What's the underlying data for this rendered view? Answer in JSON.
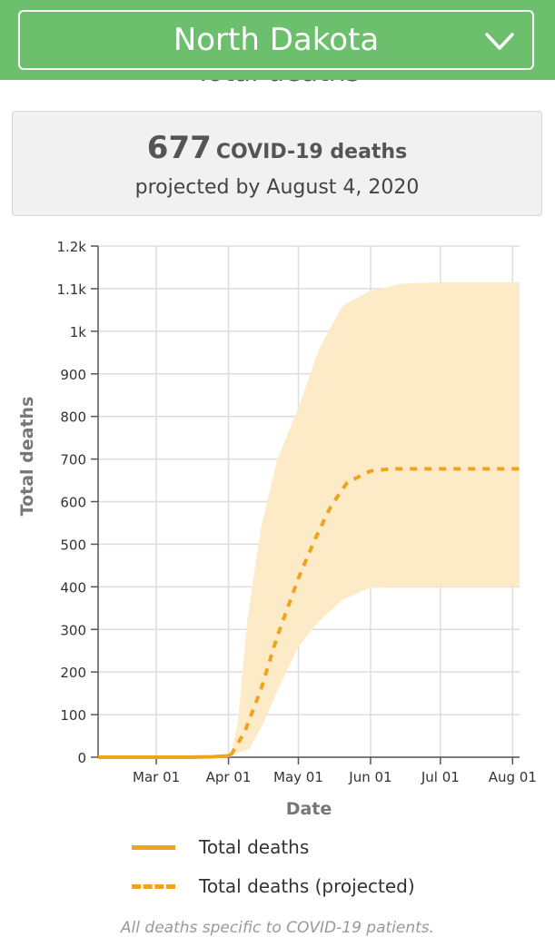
{
  "header": {
    "state": "North Dakota",
    "dropdown_icon": "chevron-down-icon",
    "bg_color": "#6cbf6c"
  },
  "cut_title": "Total deaths",
  "summary": {
    "number": "677",
    "label": "COVID-19 deaths",
    "subline": "projected by August 4, 2020"
  },
  "chart_data": {
    "type": "line",
    "title": "",
    "xlabel": "Date",
    "ylabel": "Total deaths",
    "ylim": [
      0,
      1200
    ],
    "x_ticks": [
      {
        "date": "2020-03-01",
        "label": "Mar 01"
      },
      {
        "date": "2020-04-01",
        "label": "Apr 01"
      },
      {
        "date": "2020-05-01",
        "label": "May 01"
      },
      {
        "date": "2020-06-01",
        "label": "Jun 01"
      },
      {
        "date": "2020-07-01",
        "label": "Jul 01"
      },
      {
        "date": "2020-08-01",
        "label": "Aug 01"
      }
    ],
    "y_ticks": [
      {
        "value": 0,
        "label": "0"
      },
      {
        "value": 100,
        "label": "100"
      },
      {
        "value": 200,
        "label": "200"
      },
      {
        "value": 300,
        "label": "300"
      },
      {
        "value": 400,
        "label": "400"
      },
      {
        "value": 500,
        "label": "500"
      },
      {
        "value": 600,
        "label": "600"
      },
      {
        "value": 700,
        "label": "700"
      },
      {
        "value": 800,
        "label": "800"
      },
      {
        "value": 900,
        "label": "900"
      },
      {
        "value": 1000,
        "label": "1k"
      },
      {
        "value": 1100,
        "label": "1.1k"
      },
      {
        "value": 1200,
        "label": "1.2k"
      }
    ],
    "grid": true,
    "legend_position": "bottom",
    "series": [
      {
        "name": "Total deaths",
        "style": "solid",
        "color": "#f0a31c",
        "points": [
          [
            "2020-02-05",
            0
          ],
          [
            "2020-03-01",
            0
          ],
          [
            "2020-03-15",
            0
          ],
          [
            "2020-03-25",
            1
          ],
          [
            "2020-03-31",
            3
          ],
          [
            "2020-04-02",
            5
          ]
        ]
      },
      {
        "name": "Total deaths (projected)",
        "style": "dashed",
        "color": "#f0a31c",
        "points": [
          [
            "2020-04-02",
            5
          ],
          [
            "2020-04-08",
            60
          ],
          [
            "2020-04-15",
            160
          ],
          [
            "2020-04-22",
            285
          ],
          [
            "2020-05-01",
            420
          ],
          [
            "2020-05-08",
            510
          ],
          [
            "2020-05-15",
            590
          ],
          [
            "2020-05-22",
            645
          ],
          [
            "2020-06-01",
            672
          ],
          [
            "2020-06-10",
            677
          ],
          [
            "2020-06-20",
            677
          ],
          [
            "2020-07-01",
            677
          ],
          [
            "2020-07-15",
            677
          ],
          [
            "2020-08-04",
            677
          ]
        ]
      }
    ],
    "uncertainty_band": {
      "color": "#fdebc8",
      "upper": [
        [
          "2020-04-02",
          5
        ],
        [
          "2020-04-05",
          80
        ],
        [
          "2020-04-09",
          320
        ],
        [
          "2020-04-15",
          540
        ],
        [
          "2020-04-22",
          700
        ],
        [
          "2020-05-01",
          820
        ],
        [
          "2020-05-10",
          960
        ],
        [
          "2020-05-20",
          1060
        ],
        [
          "2020-06-01",
          1095
        ],
        [
          "2020-06-15",
          1112
        ],
        [
          "2020-07-01",
          1115
        ],
        [
          "2020-08-04",
          1115
        ]
      ],
      "lower": [
        [
          "2020-04-02",
          5
        ],
        [
          "2020-04-10",
          20
        ],
        [
          "2020-04-16",
          80
        ],
        [
          "2020-04-24",
          180
        ],
        [
          "2020-05-01",
          260
        ],
        [
          "2020-05-10",
          320
        ],
        [
          "2020-05-20",
          370
        ],
        [
          "2020-06-01",
          398
        ],
        [
          "2020-06-15",
          400
        ],
        [
          "2020-07-01",
          400
        ],
        [
          "2020-08-04",
          400
        ]
      ]
    }
  },
  "footnote": "All deaths specific to COVID-19 patients."
}
